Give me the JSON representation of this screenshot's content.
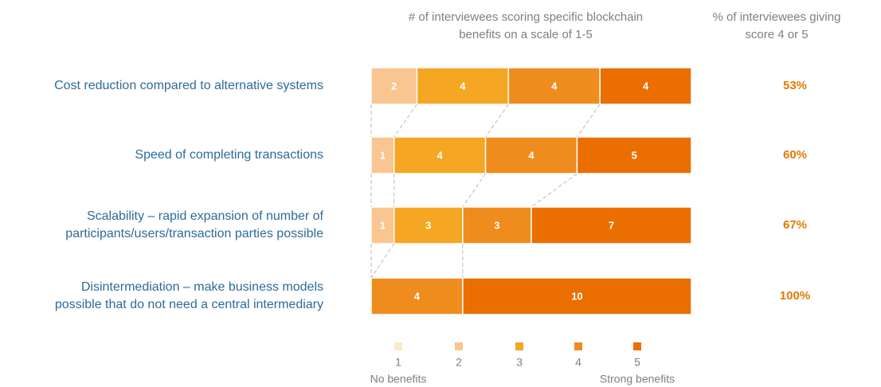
{
  "chart_data": {
    "type": "stacked-bar-horizontal",
    "header_left": [
      "# of interviewees scoring specific blockchain",
      "benefits on a scale of 1-5"
    ],
    "header_right": [
      "% of interviewees giving",
      "score 4 or 5"
    ],
    "categories": [
      [
        "Cost reduction compared to alternative systems"
      ],
      [
        "Speed of completing transactions"
      ],
      [
        "Scalability – rapid expansion of number of",
        "participants/users/transaction parties possible"
      ],
      [
        "Disintermediation – make business models",
        "possible that do not need a central intermediary"
      ]
    ],
    "series": [
      {
        "name": "1",
        "color": "#fdeac4",
        "values": [
          null,
          null,
          null,
          null
        ]
      },
      {
        "name": "2",
        "color": "#f9c590",
        "values": [
          2,
          1,
          1,
          null
        ]
      },
      {
        "name": "3",
        "color": "#f5a623",
        "values": [
          4,
          4,
          3,
          0
        ]
      },
      {
        "name": "4",
        "color": "#ef8c1e",
        "values": [
          4,
          4,
          3,
          4
        ]
      },
      {
        "name": "5",
        "color": "#eb6e00",
        "values": [
          4,
          5,
          7,
          10
        ]
      }
    ],
    "percent_values": [
      53,
      60,
      67,
      100
    ],
    "percent_labels": [
      "53%",
      "60%",
      "67%",
      "100%"
    ],
    "legend_low": "No benefits",
    "legend_high": "Strong benefits",
    "xlim": [
      0,
      14
    ]
  }
}
